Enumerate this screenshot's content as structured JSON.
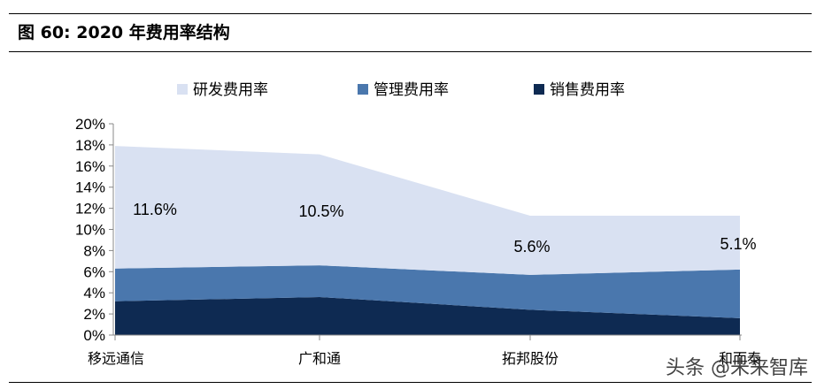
{
  "figure": {
    "title": "图 60:  2020 年费用率结构"
  },
  "watermark": "头条 @未来智库",
  "chart_data": {
    "type": "area",
    "stacked": true,
    "categories": [
      "移远通信",
      "广和通",
      "拓邦股份",
      "和而泰"
    ],
    "ylim": [
      0,
      0.2
    ],
    "yticks": [
      "0%",
      "2%",
      "4%",
      "6%",
      "8%",
      "10%",
      "12%",
      "14%",
      "16%",
      "18%",
      "20%"
    ],
    "legend_position": "top",
    "series": [
      {
        "name": "销售费用率",
        "values": [
          0.032,
          0.036,
          0.024,
          0.016
        ],
        "color": "#0e2a52"
      },
      {
        "name": "管理费用率",
        "values": [
          0.031,
          0.03,
          0.033,
          0.046
        ],
        "color": "#4a77ad"
      },
      {
        "name": "研发费用率",
        "values": [
          0.116,
          0.105,
          0.056,
          0.051
        ],
        "color": "#d9e1f2"
      }
    ],
    "legend_order": [
      "研发费用率",
      "管理费用率",
      "销售费用率"
    ],
    "annotations": [
      "11.6%",
      "10.5%",
      "5.6%",
      "5.1%"
    ]
  }
}
